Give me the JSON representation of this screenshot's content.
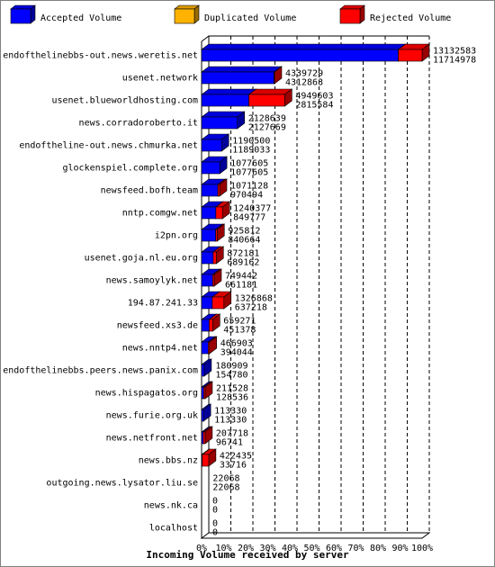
{
  "colors": {
    "accepted": "#0000ff",
    "duplicated": "#ffb300",
    "rejected": "#ff0000",
    "background": "#ffffff",
    "frame": "#808080"
  },
  "chart_data": {
    "type": "bar",
    "orientation": "horizontal",
    "stacked": true,
    "xlabel": "Incoming Volume received by server",
    "xlim": [
      0,
      13132583
    ],
    "x_ticks": [
      "0%",
      "10%",
      "20%",
      "30%",
      "40%",
      "50%",
      "60%",
      "70%",
      "80%",
      "90%",
      "100%"
    ],
    "legend": [
      {
        "name": "Accepted Volume",
        "key": "accepted"
      },
      {
        "name": "Duplicated Volume",
        "key": "duplicated"
      },
      {
        "name": "Rejected Volume",
        "key": "rejected"
      }
    ],
    "legend_position": "top",
    "grid": "vertical-dashed",
    "categories": [
      "endofthelinebbs-out.news.weretis.net",
      "usenet.network",
      "usenet.blueworldhosting.com",
      "news.corradoroberto.it",
      "endoftheline-out.news.chmurka.net",
      "glockenspiel.complete.org",
      "newsfeed.bofh.team",
      "nntp.comgw.net",
      "i2pn.org",
      "usenet.goja.nl.eu.org",
      "news.samoylyk.net",
      "194.87.241.33",
      "newsfeed.xs3.de",
      "news.nntp4.net",
      "endofthelinebbs.peers.news.panix.com",
      "news.hispagatos.org",
      "news.furie.org.uk",
      "news.netfront.net",
      "news.bbs.nz",
      "outgoing.news.lysator.liu.se",
      "news.nk.ca",
      "localhost"
    ],
    "total": [
      13132583,
      4339729,
      4949603,
      2128639,
      1190500,
      1077605,
      1071128,
      1240377,
      925812,
      872181,
      749442,
      1326868,
      659271,
      466903,
      180909,
      211528,
      113330,
      207718,
      422435,
      22068,
      0,
      0
    ],
    "accepted": [
      11714978,
      4312863,
      2815584,
      2127669,
      1189033,
      1077605,
      970494,
      849777,
      840664,
      689162,
      661181,
      637218,
      451378,
      394044,
      154780,
      128536,
      113330,
      96741,
      33716,
      22068,
      0,
      0
    ]
  }
}
